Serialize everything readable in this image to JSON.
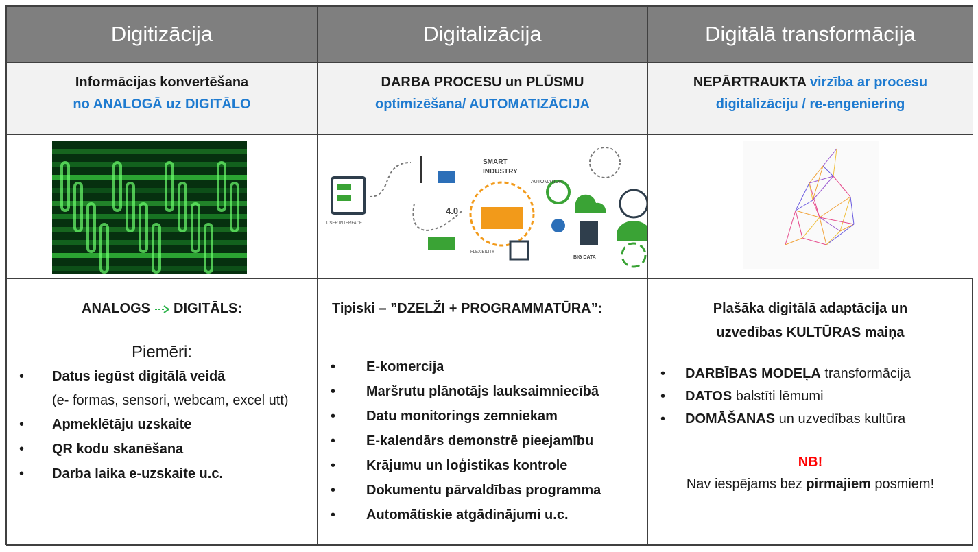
{
  "columns": [
    {
      "title": "Digitizācija",
      "subtitle": [
        [
          {
            "text": "Informācijas konvertēšana"
          }
        ],
        [
          {
            "text": "no ANALOGĀ uz DIGITĀLO",
            "color": "#1f7bd0"
          }
        ]
      ],
      "body": [
        {
          "kind": "heading",
          "arrow": true,
          "lines": [
            [
              {
                "text": "ANALOGS",
                "bold": true
              },
              {
                "text": "DIGITĀLS:",
                "bold": true
              }
            ]
          ]
        },
        {
          "kind": "plain",
          "lines": [
            [
              {
                "text": "Piemēri:"
              }
            ]
          ]
        },
        {
          "kind": "bullet",
          "lines": [
            [
              {
                "text": "Datus iegūst digitālā veidā",
                "bold": true
              }
            ],
            [
              {
                "text": "(e- formas, sensori, webcam, excel utt)"
              }
            ]
          ]
        },
        {
          "kind": "bullet",
          "lines": [
            [
              {
                "text": "Apmeklētāju uzskaite",
                "bold": true
              }
            ]
          ]
        },
        {
          "kind": "bullet",
          "lines": [
            [
              {
                "text": "QR kodu skanēšana",
                "bold": true
              }
            ]
          ]
        },
        {
          "kind": "bullet",
          "lines": [
            [
              {
                "text": "Darba laika e-uzskaite u.c.",
                "bold": true
              }
            ]
          ]
        }
      ]
    },
    {
      "title": "Digitalizācija",
      "subtitle": [
        [
          {
            "text": "DARBA PROCESU un PLŪSMU"
          }
        ],
        [
          {
            "text": "optimizēšana/ AUTOMATIZĀCIJA",
            "color": "#1f7bd0"
          }
        ]
      ],
      "image_labels": [
        "SMART",
        "INDUSTRY",
        "4.0",
        "USER INTERFACE",
        "AUTOMATION",
        "FLEXIBILITY",
        "BIG DATA"
      ],
      "body": [
        {
          "kind": "heading",
          "lines": [
            [
              {
                "text": "Tipiski – ”DZELŽI + PROGRAMMATŪRA”:",
                "bold": true
              }
            ]
          ]
        },
        {
          "kind": "bullet",
          "lines": [
            [
              {
                "text": "E-komercija",
                "bold": true
              }
            ]
          ]
        },
        {
          "kind": "bullet",
          "lines": [
            [
              {
                "text": "Maršrutu plānotājs lauksaimniecībā",
                "bold": true
              }
            ]
          ]
        },
        {
          "kind": "bullet",
          "lines": [
            [
              {
                "text": "Datu monitorings zemniekam",
                "bold": true
              }
            ]
          ]
        },
        {
          "kind": "bullet",
          "lines": [
            [
              {
                "text": "E-kalendārs demonstrē pieejamību",
                "bold": true
              }
            ]
          ]
        },
        {
          "kind": "bullet",
          "lines": [
            [
              {
                "text": "Krājumu un loģistikas kontrole",
                "bold": true
              }
            ]
          ]
        },
        {
          "kind": "bullet",
          "lines": [
            [
              {
                "text": "Dokumentu pārvaldības programma",
                "bold": true
              }
            ]
          ]
        },
        {
          "kind": "bullet",
          "lines": [
            [
              {
                "text": "Automātiskie atgādinājumi u.c.",
                "bold": true
              }
            ]
          ]
        }
      ]
    },
    {
      "title": "Digitālā transformācija",
      "subtitle": [
        [
          {
            "text": "NEPĀRTRAUKTA "
          },
          {
            "text": "virzība ar procesu",
            "color": "#1f7bd0"
          }
        ],
        [
          {
            "text": "digitalizāciju / re-engeniering",
            "color": "#1f7bd0"
          }
        ]
      ],
      "body": [
        {
          "kind": "heading",
          "lines": [
            [
              {
                "text": "Plašāka digitālā adaptācija un",
                "bold": true
              }
            ],
            [
              {
                "text": "uzvedības KULTŪRAS maiņa",
                "bold": true
              }
            ]
          ]
        },
        {
          "kind": "bullet",
          "lines": [
            [
              {
                "text": "DARBĪBAS MODEĻA",
                "bold": true
              },
              {
                "text": " transformācija"
              }
            ]
          ]
        },
        {
          "kind": "bullet",
          "lines": [
            [
              {
                "text": "DATOS",
                "bold": true
              },
              {
                "text": " balstīti lēmumi"
              }
            ]
          ]
        },
        {
          "kind": "bullet",
          "lines": [
            [
              {
                "text": "DOMĀŠANAS",
                "bold": true
              },
              {
                "text": " un uzvedības kultūra"
              }
            ]
          ]
        },
        {
          "kind": "note",
          "lines": [
            [
              {
                "text": "NB!",
                "bold": true,
                "color": "#ff0000"
              }
            ],
            [
              {
                "text": "Nav iespējams bez "
              },
              {
                "text": "pirmajiem",
                "bold": true
              },
              {
                "text": " posmiem!"
              }
            ]
          ]
        }
      ]
    }
  ]
}
